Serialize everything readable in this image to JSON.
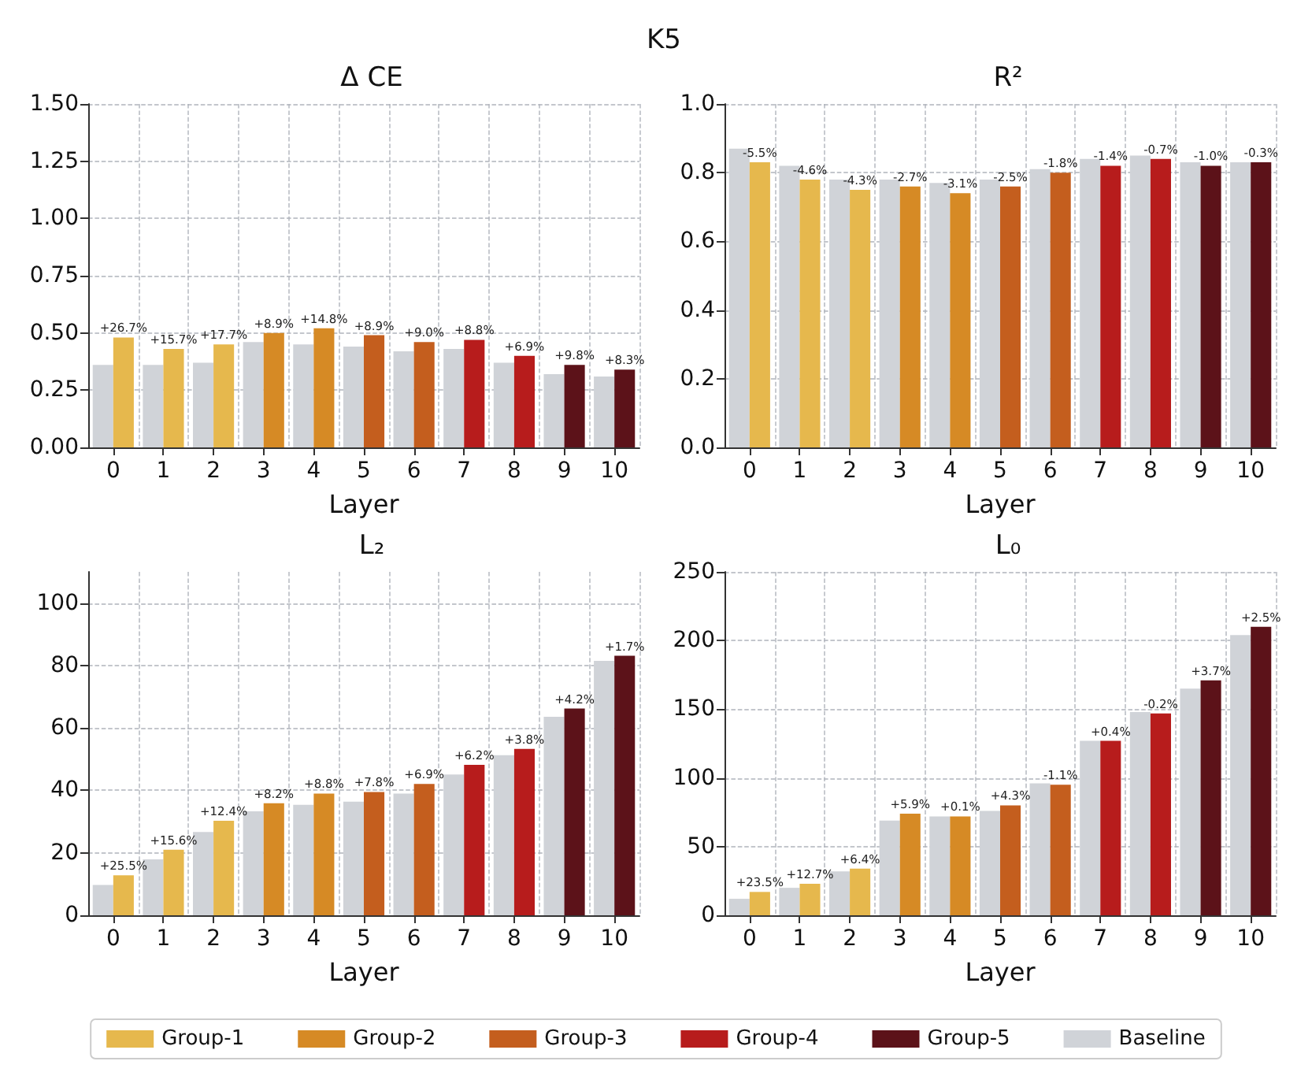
{
  "chart_data": [
    {
      "type": "bar",
      "title": "Δ CE",
      "xlabel": "Layer",
      "categories": [
        "0",
        "1",
        "2",
        "3",
        "4",
        "5",
        "6",
        "7",
        "8",
        "9",
        "10"
      ],
      "ylim": [
        0,
        1.5
      ],
      "yticks": [
        {
          "value": 0,
          "label": "0.00"
        },
        {
          "value": 0.25,
          "label": "0.25"
        },
        {
          "value": 0.5,
          "label": "0.50"
        },
        {
          "value": 0.75,
          "label": "0.75"
        },
        {
          "value": 1,
          "label": "1.00"
        },
        {
          "value": 1.25,
          "label": "1.25"
        },
        {
          "value": 1.5,
          "label": "1.50"
        }
      ],
      "grid": true,
      "legend": "bottom",
      "annotations": [
        "K5",
        {
          "text": "+26.7%",
          "x": "0",
          "y": 0.48
        },
        {
          "text": "+15.7%",
          "x": "1",
          "y": 0.43
        },
        {
          "text": "+17.7%",
          "x": "2",
          "y": 0.45
        },
        {
          "text": "+8.9%",
          "x": "3",
          "y": 0.5
        },
        {
          "text": "+14.8%",
          "x": "4",
          "y": 0.52
        },
        {
          "text": "+8.9%",
          "x": "5",
          "y": 0.49
        },
        {
          "text": "+9.0%",
          "x": "6",
          "y": 0.46
        },
        {
          "text": "+8.8%",
          "x": "7",
          "y": 0.47
        },
        {
          "text": "+6.9%",
          "x": "8",
          "y": 0.4
        },
        {
          "text": "+9.8%",
          "x": "9",
          "y": 0.36
        },
        {
          "text": "+8.3%",
          "x": "10",
          "y": 0.34
        }
      ],
      "series": [
        {
          "name": "Baseline",
          "color": "#d0d3d8",
          "values": [
            0.36,
            0.36,
            0.37,
            0.46,
            0.45,
            0.44,
            0.42,
            0.43,
            0.37,
            0.32,
            0.31
          ]
        },
        {
          "name": "Group-1",
          "color": "#e6b84d",
          "values": [
            0.48,
            0.43,
            0.45,
            null,
            null,
            null,
            null,
            null,
            null,
            null,
            null
          ]
        },
        {
          "name": "Group-2",
          "color": "#d68a25",
          "values": [
            null,
            null,
            null,
            0.5,
            0.52,
            null,
            null,
            null,
            null,
            null,
            null
          ]
        },
        {
          "name": "Group-3",
          "color": "#c45e1e",
          "values": [
            null,
            null,
            null,
            null,
            null,
            0.49,
            0.46,
            null,
            null,
            null,
            null
          ]
        },
        {
          "name": "Group-4",
          "color": "#b71c1c",
          "values": [
            null,
            null,
            null,
            null,
            null,
            null,
            null,
            0.47,
            0.4,
            null,
            null
          ]
        },
        {
          "name": "Group-5",
          "color": "#5c1219",
          "values": [
            null,
            null,
            null,
            null,
            null,
            null,
            null,
            null,
            null,
            0.36,
            0.34
          ]
        }
      ]
    },
    {
      "type": "bar",
      "title": "R²",
      "xlabel": "Layer",
      "categories": [
        "0",
        "1",
        "2",
        "3",
        "4",
        "5",
        "6",
        "7",
        "8",
        "9",
        "10"
      ],
      "ylim": [
        0,
        1.0
      ],
      "yticks": [
        {
          "value": 0,
          "label": "0.0"
        },
        {
          "value": 0.2,
          "label": "0.2"
        },
        {
          "value": 0.4,
          "label": "0.4"
        },
        {
          "value": 0.6,
          "label": "0.6"
        },
        {
          "value": 0.8,
          "label": "0.8"
        },
        {
          "value": 1,
          "label": "1.0"
        }
      ],
      "grid": true,
      "legend": "bottom",
      "annotations": [
        {
          "text": "-5.5%",
          "x": "0",
          "y": 0.83
        },
        {
          "text": "-4.6%",
          "x": "1",
          "y": 0.78
        },
        {
          "text": "-4.3%",
          "x": "2",
          "y": 0.75
        },
        {
          "text": "-2.7%",
          "x": "3",
          "y": 0.76
        },
        {
          "text": "-3.1%",
          "x": "4",
          "y": 0.74
        },
        {
          "text": "-2.5%",
          "x": "5",
          "y": 0.76
        },
        {
          "text": "-1.8%",
          "x": "6",
          "y": 0.8
        },
        {
          "text": "-1.4%",
          "x": "7",
          "y": 0.82
        },
        {
          "text": "-0.7%",
          "x": "8",
          "y": 0.84
        },
        {
          "text": "-1.0%",
          "x": "9",
          "y": 0.82
        },
        {
          "text": "-0.3%",
          "x": "10",
          "y": 0.83
        }
      ],
      "series": [
        {
          "name": "Baseline",
          "color": "#d0d3d8",
          "values": [
            0.87,
            0.82,
            0.78,
            0.78,
            0.77,
            0.78,
            0.81,
            0.84,
            0.85,
            0.83,
            0.83
          ]
        },
        {
          "name": "Group-1",
          "color": "#e6b84d",
          "values": [
            0.83,
            0.78,
            0.75,
            null,
            null,
            null,
            null,
            null,
            null,
            null,
            null
          ]
        },
        {
          "name": "Group-2",
          "color": "#d68a25",
          "values": [
            null,
            null,
            null,
            0.76,
            0.74,
            null,
            null,
            null,
            null,
            null,
            null
          ]
        },
        {
          "name": "Group-3",
          "color": "#c45e1e",
          "values": [
            null,
            null,
            null,
            null,
            null,
            0.76,
            0.8,
            null,
            null,
            null,
            null
          ]
        },
        {
          "name": "Group-4",
          "color": "#b71c1c",
          "values": [
            null,
            null,
            null,
            null,
            null,
            null,
            null,
            0.82,
            0.84,
            null,
            null
          ]
        },
        {
          "name": "Group-5",
          "color": "#5c1219",
          "values": [
            null,
            null,
            null,
            null,
            null,
            null,
            null,
            null,
            null,
            0.82,
            0.83
          ]
        }
      ]
    },
    {
      "type": "bar",
      "title": "L₂",
      "xlabel": "Layer",
      "categories": [
        "0",
        "1",
        "2",
        "3",
        "4",
        "5",
        "6",
        "7",
        "8",
        "9",
        "10"
      ],
      "ylim": [
        0,
        110
      ],
      "yticks": [
        0,
        20,
        40,
        60,
        80,
        100
      ],
      "grid": true,
      "legend": "bottom",
      "annotations": [
        {
          "text": "+25.5%",
          "x": "0",
          "y": 12.8
        },
        {
          "text": "+15.6%",
          "x": "1",
          "y": 21
        },
        {
          "text": "+12.4%",
          "x": "2",
          "y": 30.3
        },
        {
          "text": "+8.2%",
          "x": "3",
          "y": 35.9
        },
        {
          "text": "+8.8%",
          "x": "4",
          "y": 39
        },
        {
          "text": "+7.8%",
          "x": "5",
          "y": 39.5
        },
        {
          "text": "+6.9%",
          "x": "6",
          "y": 42.1
        },
        {
          "text": "+6.2%",
          "x": "7",
          "y": 48.2
        },
        {
          "text": "+3.8%",
          "x": "8",
          "y": 53.3
        },
        {
          "text": "+4.2%",
          "x": "9",
          "y": 66.2
        },
        {
          "text": "+1.7%",
          "x": "10",
          "y": 83.1
        }
      ],
      "series": [
        {
          "name": "Baseline",
          "color": "#d0d3d8",
          "values": [
            9.7,
            17.9,
            26.7,
            33.3,
            35.4,
            36.4,
            39,
            45.1,
            51.3,
            63.6,
            81.5
          ]
        },
        {
          "name": "Group-1",
          "color": "#e6b84d",
          "values": [
            12.8,
            21,
            30.3,
            null,
            null,
            null,
            null,
            null,
            null,
            null,
            null
          ]
        },
        {
          "name": "Group-2",
          "color": "#d68a25",
          "values": [
            null,
            null,
            null,
            35.9,
            39,
            null,
            null,
            null,
            null,
            null,
            null
          ]
        },
        {
          "name": "Group-3",
          "color": "#c45e1e",
          "values": [
            null,
            null,
            null,
            null,
            null,
            39.5,
            42.1,
            null,
            null,
            null,
            null
          ]
        },
        {
          "name": "Group-4",
          "color": "#b71c1c",
          "values": [
            null,
            null,
            null,
            null,
            null,
            null,
            null,
            48.2,
            53.3,
            null,
            null
          ]
        },
        {
          "name": "Group-5",
          "color": "#5c1219",
          "values": [
            null,
            null,
            null,
            null,
            null,
            null,
            null,
            null,
            null,
            66.2,
            83.1
          ]
        }
      ]
    },
    {
      "type": "bar",
      "title": "L₀",
      "xlabel": "Layer",
      "categories": [
        "0",
        "1",
        "2",
        "3",
        "4",
        "5",
        "6",
        "7",
        "8",
        "9",
        "10"
      ],
      "ylim": [
        0,
        250
      ],
      "yticks": [
        0,
        50,
        100,
        150,
        200,
        250
      ],
      "grid": true,
      "legend": "bottom",
      "annotations": [
        {
          "text": "+23.5%",
          "x": "0",
          "y": 17
        },
        {
          "text": "+12.7%",
          "x": "1",
          "y": 23
        },
        {
          "text": "+6.4%",
          "x": "2",
          "y": 34
        },
        {
          "text": "+5.9%",
          "x": "3",
          "y": 74
        },
        {
          "text": "+0.1%",
          "x": "4",
          "y": 72
        },
        {
          "text": "+4.3%",
          "x": "5",
          "y": 80
        },
        {
          "text": "-1.1%",
          "x": "6",
          "y": 95
        },
        {
          "text": "+0.4%",
          "x": "7",
          "y": 127
        },
        {
          "text": "-0.2%",
          "x": "8",
          "y": 147
        },
        {
          "text": "+3.7%",
          "x": "9",
          "y": 171
        },
        {
          "text": "+2.5%",
          "x": "10",
          "y": 210
        }
      ],
      "series": [
        {
          "name": "Baseline",
          "color": "#d0d3d8",
          "values": [
            12,
            20,
            32,
            69,
            72,
            76,
            96,
            127,
            148,
            165,
            204
          ]
        },
        {
          "name": "Group-1",
          "color": "#e6b84d",
          "values": [
            17,
            23,
            34,
            null,
            null,
            null,
            null,
            null,
            null,
            null,
            null
          ]
        },
        {
          "name": "Group-2",
          "color": "#d68a25",
          "values": [
            null,
            null,
            null,
            74,
            72,
            null,
            null,
            null,
            null,
            null,
            null
          ]
        },
        {
          "name": "Group-3",
          "color": "#c45e1e",
          "values": [
            null,
            null,
            null,
            null,
            null,
            80,
            95,
            null,
            null,
            null,
            null
          ]
        },
        {
          "name": "Group-4",
          "color": "#b71c1c",
          "values": [
            null,
            null,
            null,
            null,
            null,
            null,
            null,
            127,
            147,
            null,
            null
          ]
        },
        {
          "name": "Group-5",
          "color": "#5c1219",
          "values": [
            null,
            null,
            null,
            null,
            null,
            null,
            null,
            null,
            null,
            171,
            210
          ]
        }
      ]
    }
  ]
}
